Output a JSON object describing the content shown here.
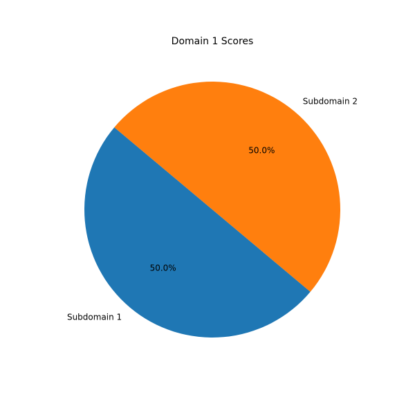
{
  "chart_data": {
    "type": "pie",
    "title": "Domain 1 Scores",
    "slices": [
      {
        "label": "Subdomain 1",
        "value": 50.0,
        "pct_label": "50.0%",
        "color": "#1f77b4"
      },
      {
        "label": "Subdomain 2",
        "value": 50.0,
        "pct_label": "50.0%",
        "color": "#ff7f0e"
      }
    ],
    "start_angle_deg": 140,
    "direction": "counterclockwise",
    "legend": "none"
  }
}
